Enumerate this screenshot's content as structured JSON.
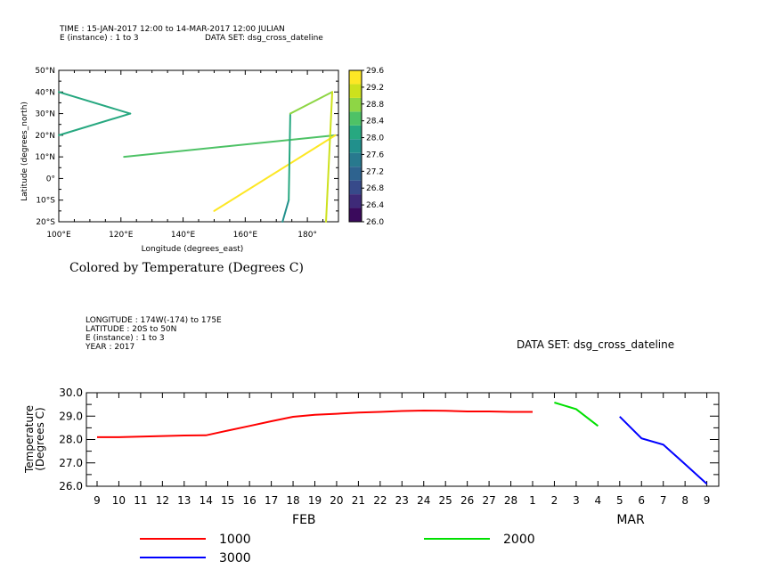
{
  "chart_data": [
    {
      "type": "line",
      "header": [
        "TIME : 15-JAN-2017 12:00 to 14-MAR-2017 12:00 JULIAN",
        "E (instance) : 1 to 3",
        "DATA SET: dsg_cross_dateline"
      ],
      "xlabel": "Longitude (degrees_east)",
      "ylabel": "Latitude (degrees_north)",
      "xlim": [
        100,
        190
      ],
      "ylim": [
        -20,
        50
      ],
      "x_ticks": [
        {
          "value": 100,
          "label": "100°E"
        },
        {
          "value": 120,
          "label": "120°E"
        },
        {
          "value": 140,
          "label": "140°E"
        },
        {
          "value": 160,
          "label": "160°E"
        },
        {
          "value": 180,
          "label": "180°"
        }
      ],
      "y_ticks": [
        {
          "value": 50,
          "label": "50°N"
        },
        {
          "value": 40,
          "label": "40°N"
        },
        {
          "value": 30,
          "label": "30°N"
        },
        {
          "value": 20,
          "label": "20°N"
        },
        {
          "value": 10,
          "label": "10°N"
        },
        {
          "value": 0,
          "label": "0°"
        },
        {
          "value": -10,
          "label": "10°S"
        },
        {
          "value": -20,
          "label": "20°S"
        }
      ],
      "caption": "Colored by Temperature (Degrees C)",
      "colorbar": {
        "min": 26.0,
        "max": 29.6,
        "labels": [
          "29.6",
          "29.2",
          "28.8",
          "28.4",
          "28.0",
          "27.6",
          "27.2",
          "26.8",
          "26.4",
          "26.0"
        ],
        "colors": [
          "#3a0a5c",
          "#3e2a78",
          "#374a8a",
          "#2e638f",
          "#28798e",
          "#21908c",
          "#27a880",
          "#4ec266",
          "#8ed645",
          "#cde11d",
          "#fde725"
        ]
      },
      "series": [
        {
          "points": [
            [
              100,
              40,
              28.0
            ],
            [
              123,
              30,
              28.0
            ],
            [
              100,
              20,
              28.0
            ]
          ]
        },
        {
          "points": [
            [
              121,
              10,
              28.6
            ],
            [
              189,
              20,
              28.6
            ]
          ]
        },
        {
          "points": [
            [
              150,
              -15,
              29.4
            ],
            [
              189,
              20,
              29.4
            ]
          ]
        },
        {
          "points": [
            [
              172,
              -20,
              27.8
            ],
            [
              174,
              -10,
              27.8
            ],
            [
              174.5,
              30,
              28.4
            ],
            [
              188,
              40,
              28.9
            ],
            [
              186,
              -20,
              29.0
            ]
          ]
        }
      ]
    },
    {
      "type": "line",
      "header": [
        "LONGITUDE : 174W(-174) to 175E",
        "LATITUDE : 20S to 50N",
        "E (instance) : 1 to 3",
        "YEAR : 2017"
      ],
      "dataset": "DATA SET: dsg_cross_dateline",
      "ylabel_lines": [
        "Temperature",
        "(Degrees C)"
      ],
      "ylim": [
        26.0,
        30.0
      ],
      "y_ticks": [
        "30.0",
        "29.0",
        "28.0",
        "27.0",
        "26.0"
      ],
      "x_tick_labels": [
        "9",
        "10",
        "11",
        "12",
        "13",
        "14",
        "15",
        "16",
        "17",
        "18",
        "19",
        "20",
        "21",
        "22",
        "23",
        "24",
        "25",
        "26",
        "27",
        "28",
        "1",
        "2",
        "3",
        "4",
        "5",
        "6",
        "7",
        "8",
        "9"
      ],
      "x_months": [
        {
          "label": "FEB",
          "index": 9.5
        },
        {
          "label": "MAR",
          "index": 24.5
        }
      ],
      "series": [
        {
          "name": "1000",
          "color": "#ff0000",
          "x": [
            0,
            1,
            2,
            3,
            4,
            5,
            6,
            7,
            8,
            9,
            10,
            11,
            12,
            13,
            14,
            15,
            16,
            17,
            18,
            19,
            20
          ],
          "y": [
            28.1,
            28.1,
            28.12,
            28.15,
            28.17,
            28.18,
            28.38,
            28.58,
            28.78,
            28.97,
            29.06,
            29.1,
            29.15,
            29.18,
            29.22,
            29.24,
            29.23,
            29.2,
            29.2,
            29.18,
            29.18
          ]
        },
        {
          "name": "2000",
          "color": "#00e000",
          "x": [
            21,
            22,
            23
          ],
          "y": [
            29.58,
            29.3,
            28.58
          ]
        },
        {
          "name": "3000",
          "color": "#0000ff",
          "x": [
            24,
            25,
            26,
            27,
            28
          ],
          "y": [
            28.98,
            28.05,
            27.78,
            26.95,
            26.1
          ]
        }
      ]
    }
  ]
}
